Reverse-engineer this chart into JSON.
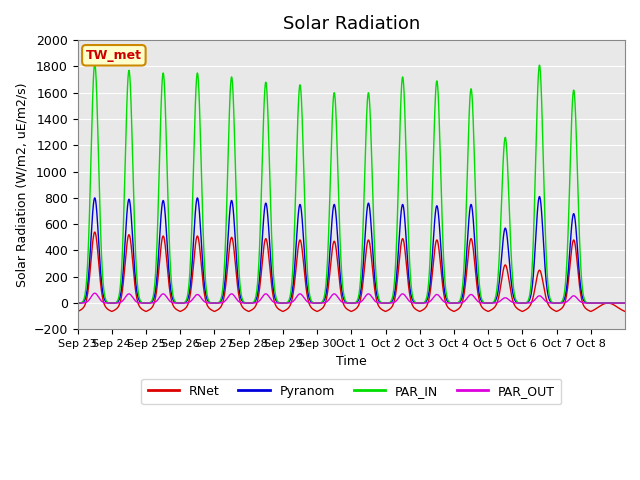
{
  "title": "Solar Radiation",
  "ylabel": "Solar Radiation (W/m2, uE/m2/s)",
  "xlabel": "Time",
  "ylim": [
    -200,
    2000
  ],
  "yticks": [
    -200,
    0,
    200,
    400,
    600,
    800,
    1000,
    1200,
    1400,
    1600,
    1800,
    2000
  ],
  "label_box_text": "TW_met",
  "label_box_bg": "#FFFFCC",
  "label_box_edge": "#CC8800",
  "label_box_text_color": "#CC0000",
  "background_color": "#E8E8E8",
  "grid_color": "#FFFFFF",
  "series": {
    "RNet": {
      "color": "#DD0000",
      "lw": 1.0
    },
    "Pyranom": {
      "color": "#0000DD",
      "lw": 1.0
    },
    "PAR_IN": {
      "color": "#00DD00",
      "lw": 1.0
    },
    "PAR_OUT": {
      "color": "#DD00DD",
      "lw": 1.0
    }
  },
  "x_tick_labels": [
    "Sep 23",
    "Sep 24",
    "Sep 25",
    "Sep 26",
    "Sep 27",
    "Sep 28",
    "Sep 29",
    "Sep 30",
    "Oct 1",
    "Oct 2",
    "Oct 3",
    "Oct 4",
    "Oct 5",
    "Oct 6",
    "Oct 7",
    "Oct 8"
  ],
  "n_days": 16,
  "points_per_day": 144,
  "peaks": {
    "RNet": [
      540,
      520,
      510,
      510,
      500,
      490,
      480,
      470,
      480,
      490,
      480,
      490,
      290,
      250,
      480,
      0
    ],
    "Pyranom": [
      800,
      790,
      780,
      800,
      780,
      760,
      750,
      750,
      760,
      750,
      740,
      750,
      570,
      810,
      680,
      0
    ],
    "PAR_IN": [
      1820,
      1770,
      1750,
      1750,
      1720,
      1680,
      1660,
      1600,
      1600,
      1720,
      1690,
      1630,
      1260,
      1810,
      1620,
      0
    ],
    "PAR_OUT": [
      75,
      70,
      70,
      65,
      70,
      70,
      70,
      70,
      70,
      70,
      65,
      65,
      40,
      55,
      55,
      0
    ]
  },
  "night_trough": {
    "RNet": -80,
    "Pyranom": 0,
    "PAR_IN": 0,
    "PAR_OUT": 0
  },
  "series_order": [
    "RNet",
    "Pyranom",
    "PAR_IN",
    "PAR_OUT"
  ]
}
